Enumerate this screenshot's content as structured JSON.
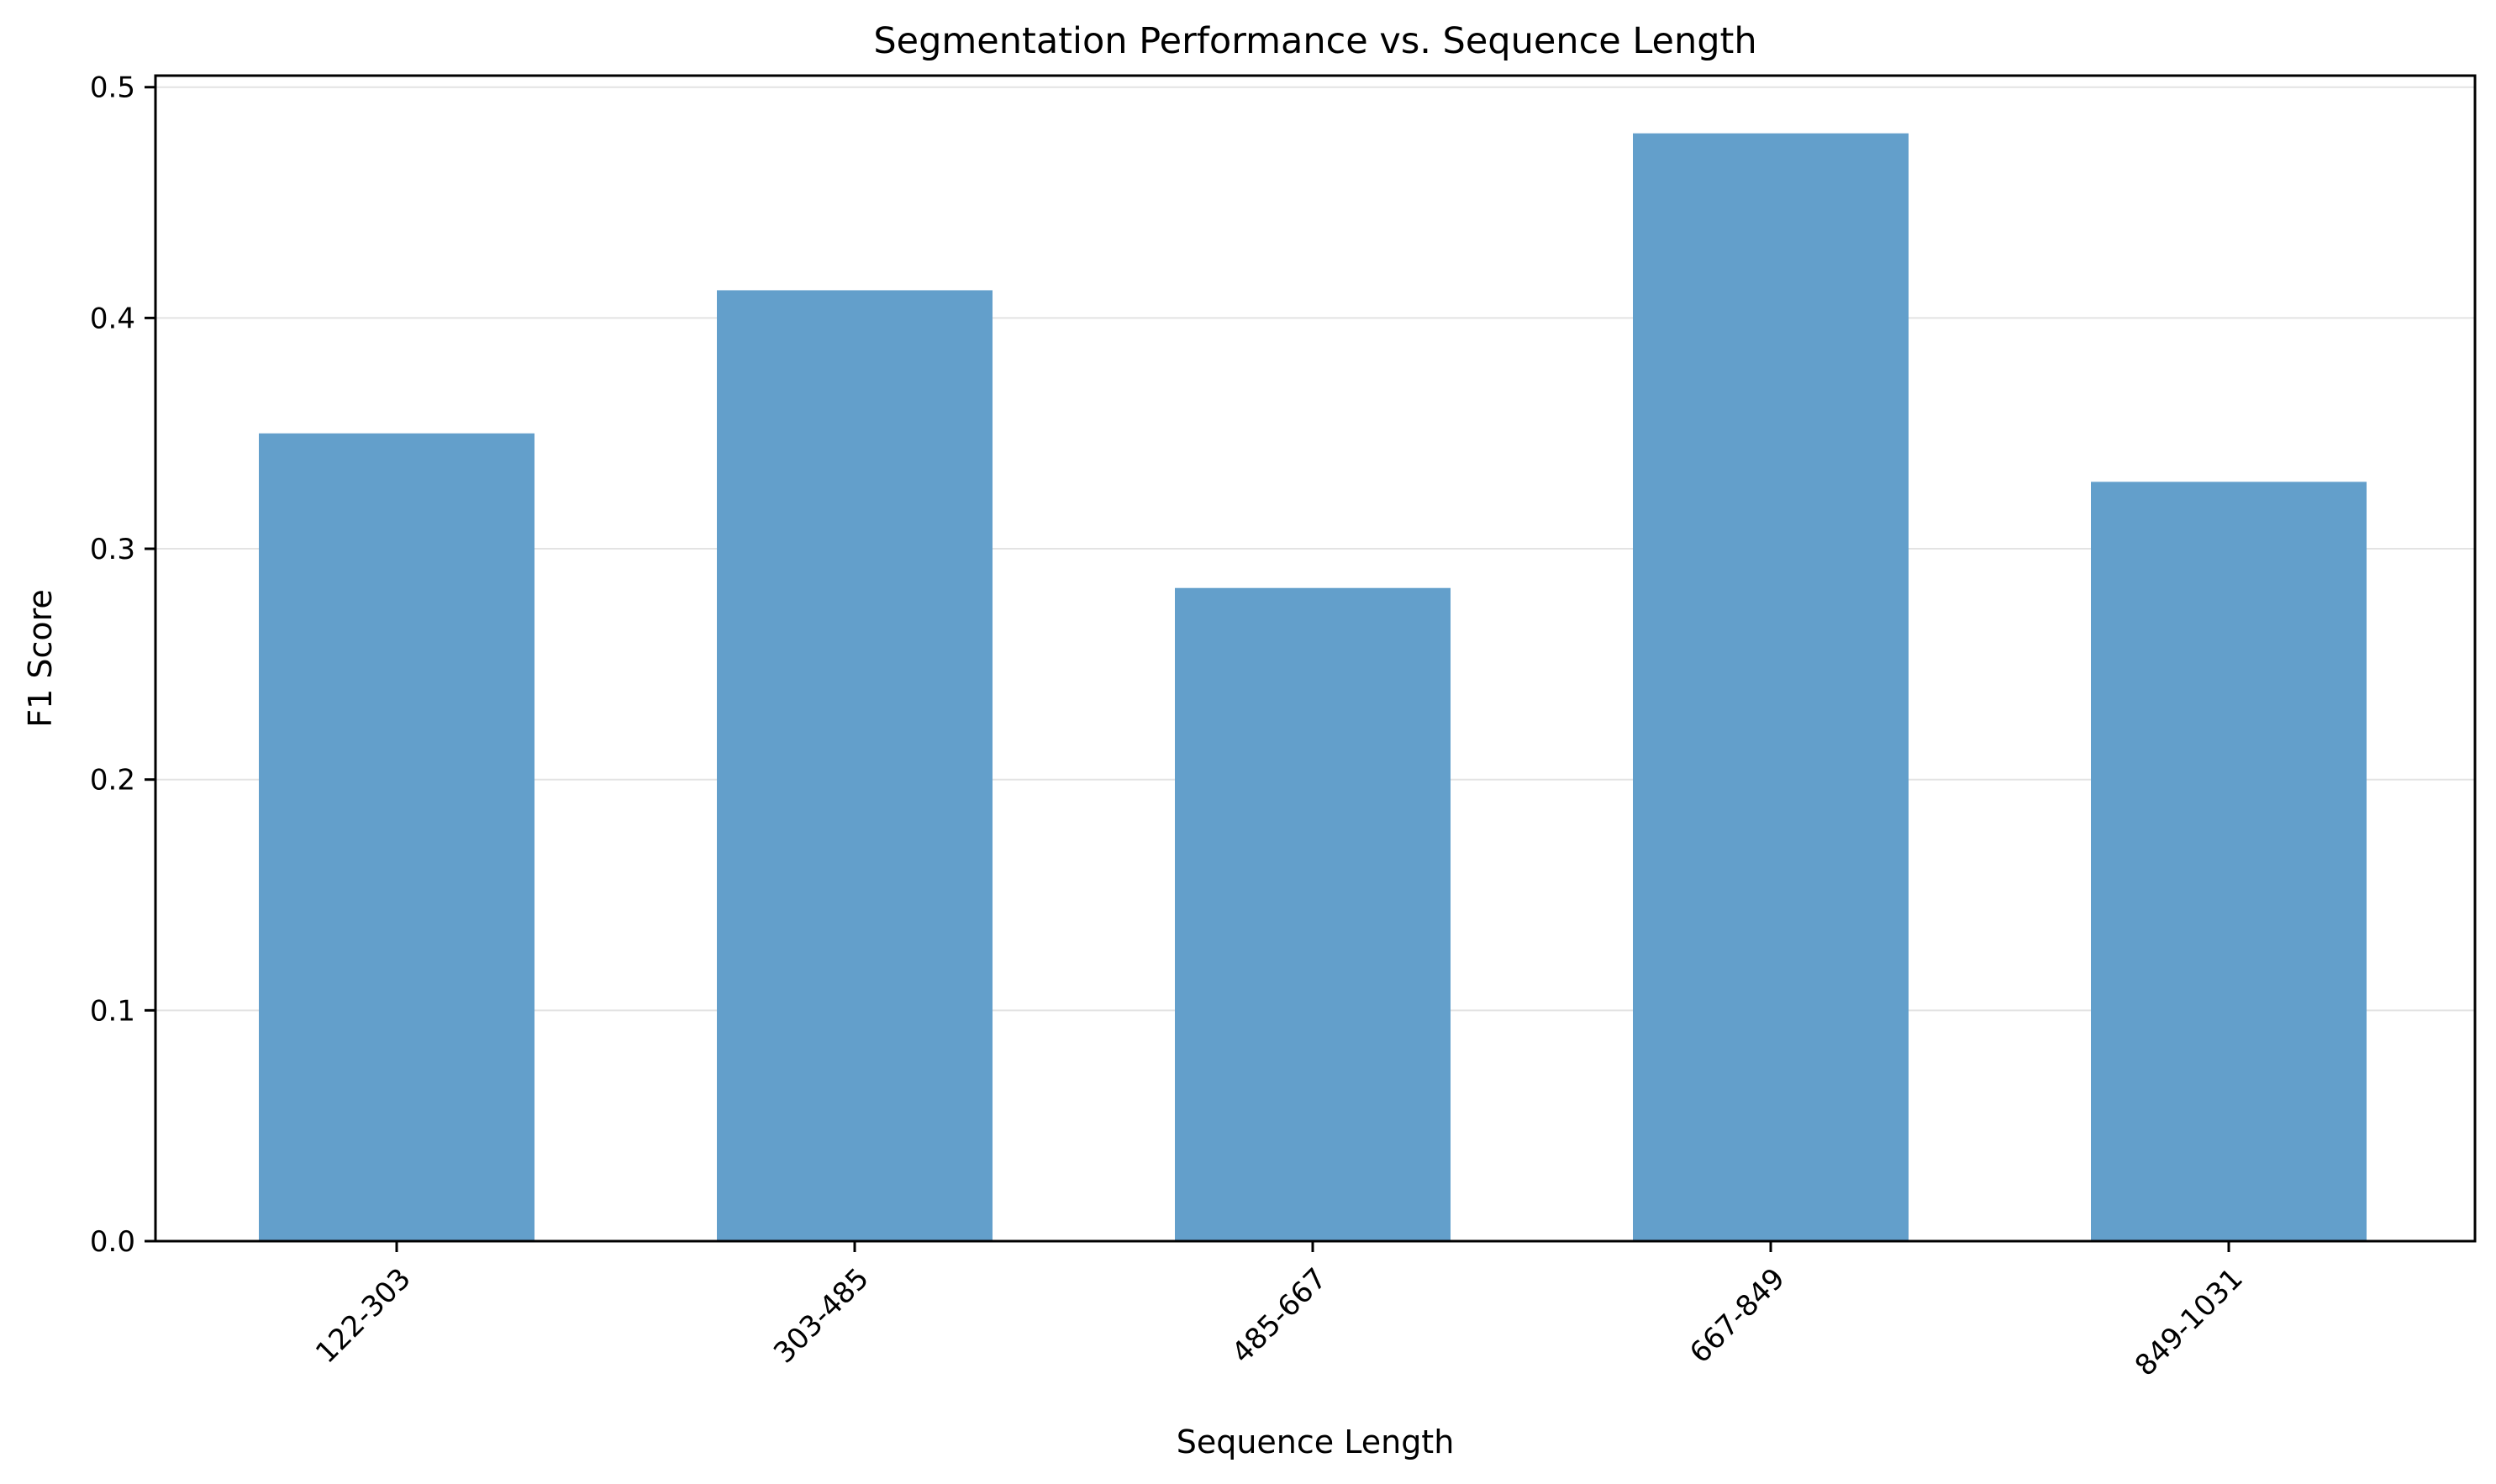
{
  "chart_data": {
    "type": "bar",
    "title": "Segmentation Performance vs. Sequence Length",
    "xlabel": "Sequence Length",
    "ylabel": "F1 Score",
    "categories": [
      "122-303",
      "303-485",
      "485-667",
      "667-849",
      "849-1031"
    ],
    "values": [
      0.35,
      0.412,
      0.283,
      0.48,
      0.329
    ],
    "ylim": [
      0,
      0.505
    ],
    "yticks": [
      "0.0",
      "0.1",
      "0.2",
      "0.3",
      "0.4",
      "0.5"
    ],
    "grid": "horizontal",
    "legend": "none",
    "bar_color": "#639fcb"
  }
}
